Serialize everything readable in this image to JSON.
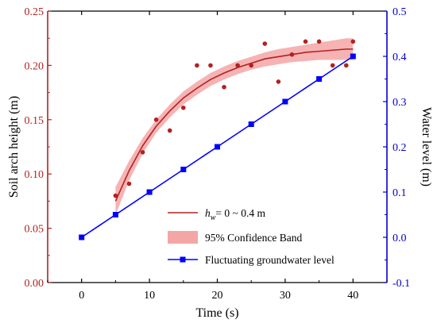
{
  "chart_data": {
    "type": "scatter",
    "x_axis": {
      "label": "Time (s)",
      "range": [
        -5,
        45
      ],
      "ticks": [
        0,
        10,
        20,
        30,
        40
      ],
      "tick_labels": [
        "0",
        "10",
        "20",
        "30",
        "40"
      ],
      "color": "#000000"
    },
    "y_left_axis": {
      "label": "Soil arch height (m)",
      "range": [
        0.0,
        0.25
      ],
      "ticks": [
        0.0,
        0.05,
        0.1,
        0.15,
        0.2,
        0.25
      ],
      "tick_labels": [
        "0.00",
        "0.05",
        "0.10",
        "0.15",
        "0.20",
        "0.25"
      ],
      "color": "#b22222"
    },
    "y_right_axis": {
      "label": "Water level (m)",
      "range": [
        -0.1,
        0.5
      ],
      "ticks": [
        -0.1,
        0.0,
        0.1,
        0.2,
        0.3,
        0.4,
        0.5
      ],
      "tick_labels": [
        "-0.1",
        "0.0",
        "0.1",
        "0.2",
        "0.3",
        "0.4",
        "0.5"
      ],
      "color": "#0000cc"
    },
    "series": [
      {
        "name": "h_w= 0 ~ 0.4 m",
        "kind": "scatter-points",
        "axis": "left",
        "color": "#b22222",
        "x": [
          5,
          7,
          9,
          11,
          13,
          15,
          17,
          19,
          21,
          23,
          25,
          27,
          29,
          31,
          33,
          35,
          37,
          39,
          40
        ],
        "y": [
          0.08,
          0.091,
          0.12,
          0.15,
          0.14,
          0.161,
          0.2,
          0.2,
          0.18,
          0.2,
          0.2,
          0.22,
          0.185,
          0.21,
          0.222,
          0.222,
          0.2,
          0.2,
          0.222
        ]
      },
      {
        "name": "h_w= 0 ~ 0.4 m",
        "kind": "fit-curve",
        "axis": "left",
        "color": "#b22222",
        "x": [
          5,
          7,
          9,
          11,
          13,
          15,
          17,
          19,
          21,
          23,
          25,
          27,
          29,
          31,
          33,
          35,
          37,
          39,
          40
        ],
        "y": [
          0.075,
          0.103,
          0.126,
          0.144,
          0.158,
          0.17,
          0.179,
          0.187,
          0.193,
          0.198,
          0.202,
          0.206,
          0.208,
          0.21,
          0.212,
          0.213,
          0.214,
          0.215,
          0.215
        ]
      },
      {
        "name": "95% Confidence Band",
        "kind": "band",
        "axis": "left",
        "color": "#f4a6a6",
        "x": [
          5,
          7,
          9,
          11,
          13,
          15,
          17,
          19,
          21,
          23,
          25,
          27,
          29,
          31,
          33,
          35,
          37,
          39,
          40
        ],
        "lower": [
          0.062,
          0.094,
          0.119,
          0.138,
          0.152,
          0.164,
          0.173,
          0.181,
          0.187,
          0.192,
          0.196,
          0.199,
          0.201,
          0.203,
          0.204,
          0.205,
          0.205,
          0.205,
          0.205
        ],
        "upper": [
          0.088,
          0.112,
          0.133,
          0.15,
          0.164,
          0.176,
          0.185,
          0.193,
          0.199,
          0.204,
          0.208,
          0.212,
          0.215,
          0.217,
          0.219,
          0.221,
          0.223,
          0.225,
          0.225
        ]
      },
      {
        "name": "Fluctuating groundwater level",
        "kind": "line-markers",
        "axis": "right",
        "color": "#0000ff",
        "x": [
          0,
          5,
          10,
          15,
          20,
          25,
          30,
          35,
          40
        ],
        "y": [
          0.0,
          0.05,
          0.1,
          0.15,
          0.2,
          0.25,
          0.3,
          0.35,
          0.4
        ]
      }
    ],
    "legend": {
      "placement": "bottom-right",
      "entries": [
        {
          "prefix": "h",
          "subscript": "w",
          "suffix": "= 0 ~ 0.4 m",
          "type": "line",
          "color": "#b22222"
        },
        {
          "text": "95% Confidence Band",
          "type": "band",
          "color": "#f4a6a6"
        },
        {
          "text": "Fluctuating groundwater level",
          "type": "line-square",
          "color": "#0000ff"
        }
      ]
    },
    "grid": false
  }
}
